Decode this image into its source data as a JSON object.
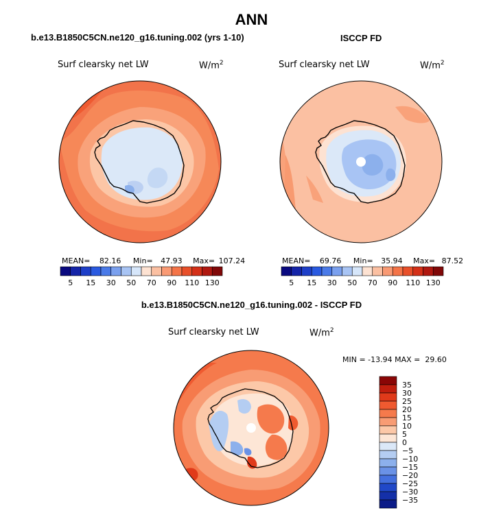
{
  "title": "ANN",
  "panels": {
    "left": {
      "case": "b.e13.B1850C5CN.ne120_g16.tuning.002 (yrs 1-10)",
      "label": "Surf clearsky net LW",
      "units": "W/m",
      "units_sup": "2",
      "mean_label": "MEAN=",
      "mean": "82.16",
      "min_label": "Min=",
      "min": "47.93",
      "max_label": "Max=",
      "max": "107.24"
    },
    "right": {
      "case": "ISCCP FD",
      "label": "Surf clearsky net LW",
      "units": "W/m",
      "units_sup": "2",
      "mean_label": "MEAN=",
      "mean": "69.76",
      "min_label": "Min=",
      "min": "35.94",
      "max_label": "Max=",
      "max": "87.52"
    },
    "diff": {
      "case": "b.e13.B1850C5CN.ne120_g16.tuning.002 - ISCCP FD",
      "label": "Surf clearsky net LW",
      "units": "W/m",
      "units_sup": "2",
      "minmax": "MIN = -13.94 MAX =  29.60"
    }
  },
  "colorbar_abs": {
    "ticks": [
      "5",
      "15",
      "30",
      "50",
      "70",
      "90",
      "110",
      "130"
    ],
    "colors": [
      "#0a0a80",
      "#1424a8",
      "#1e3fc8",
      "#2a5ae0",
      "#4a7ae8",
      "#7aa0ee",
      "#a8c4f4",
      "#d6e6fa",
      "#fde2d2",
      "#fbc0a2",
      "#f99a74",
      "#f47448",
      "#e8502a",
      "#d43018",
      "#b01810",
      "#800808"
    ]
  },
  "colorbar_diff": {
    "ticks": [
      "35",
      "30",
      "25",
      "20",
      "15",
      "10",
      "5",
      "0",
      "-5",
      "-10",
      "-15",
      "-20",
      "-25",
      "-30",
      "-35"
    ],
    "colors": [
      "#8a0606",
      "#c01e0e",
      "#e03a1a",
      "#ef5a30",
      "#f57a4c",
      "#f89c74",
      "#fcc8a8",
      "#fde6d6",
      "#dbe8f8",
      "#b4cdf2",
      "#8cb0ec",
      "#6a92e6",
      "#4470de",
      "#2048c8",
      "#1430a8",
      "#0c1c88"
    ]
  },
  "regions": {
    "antarctica": "Antarctica"
  }
}
